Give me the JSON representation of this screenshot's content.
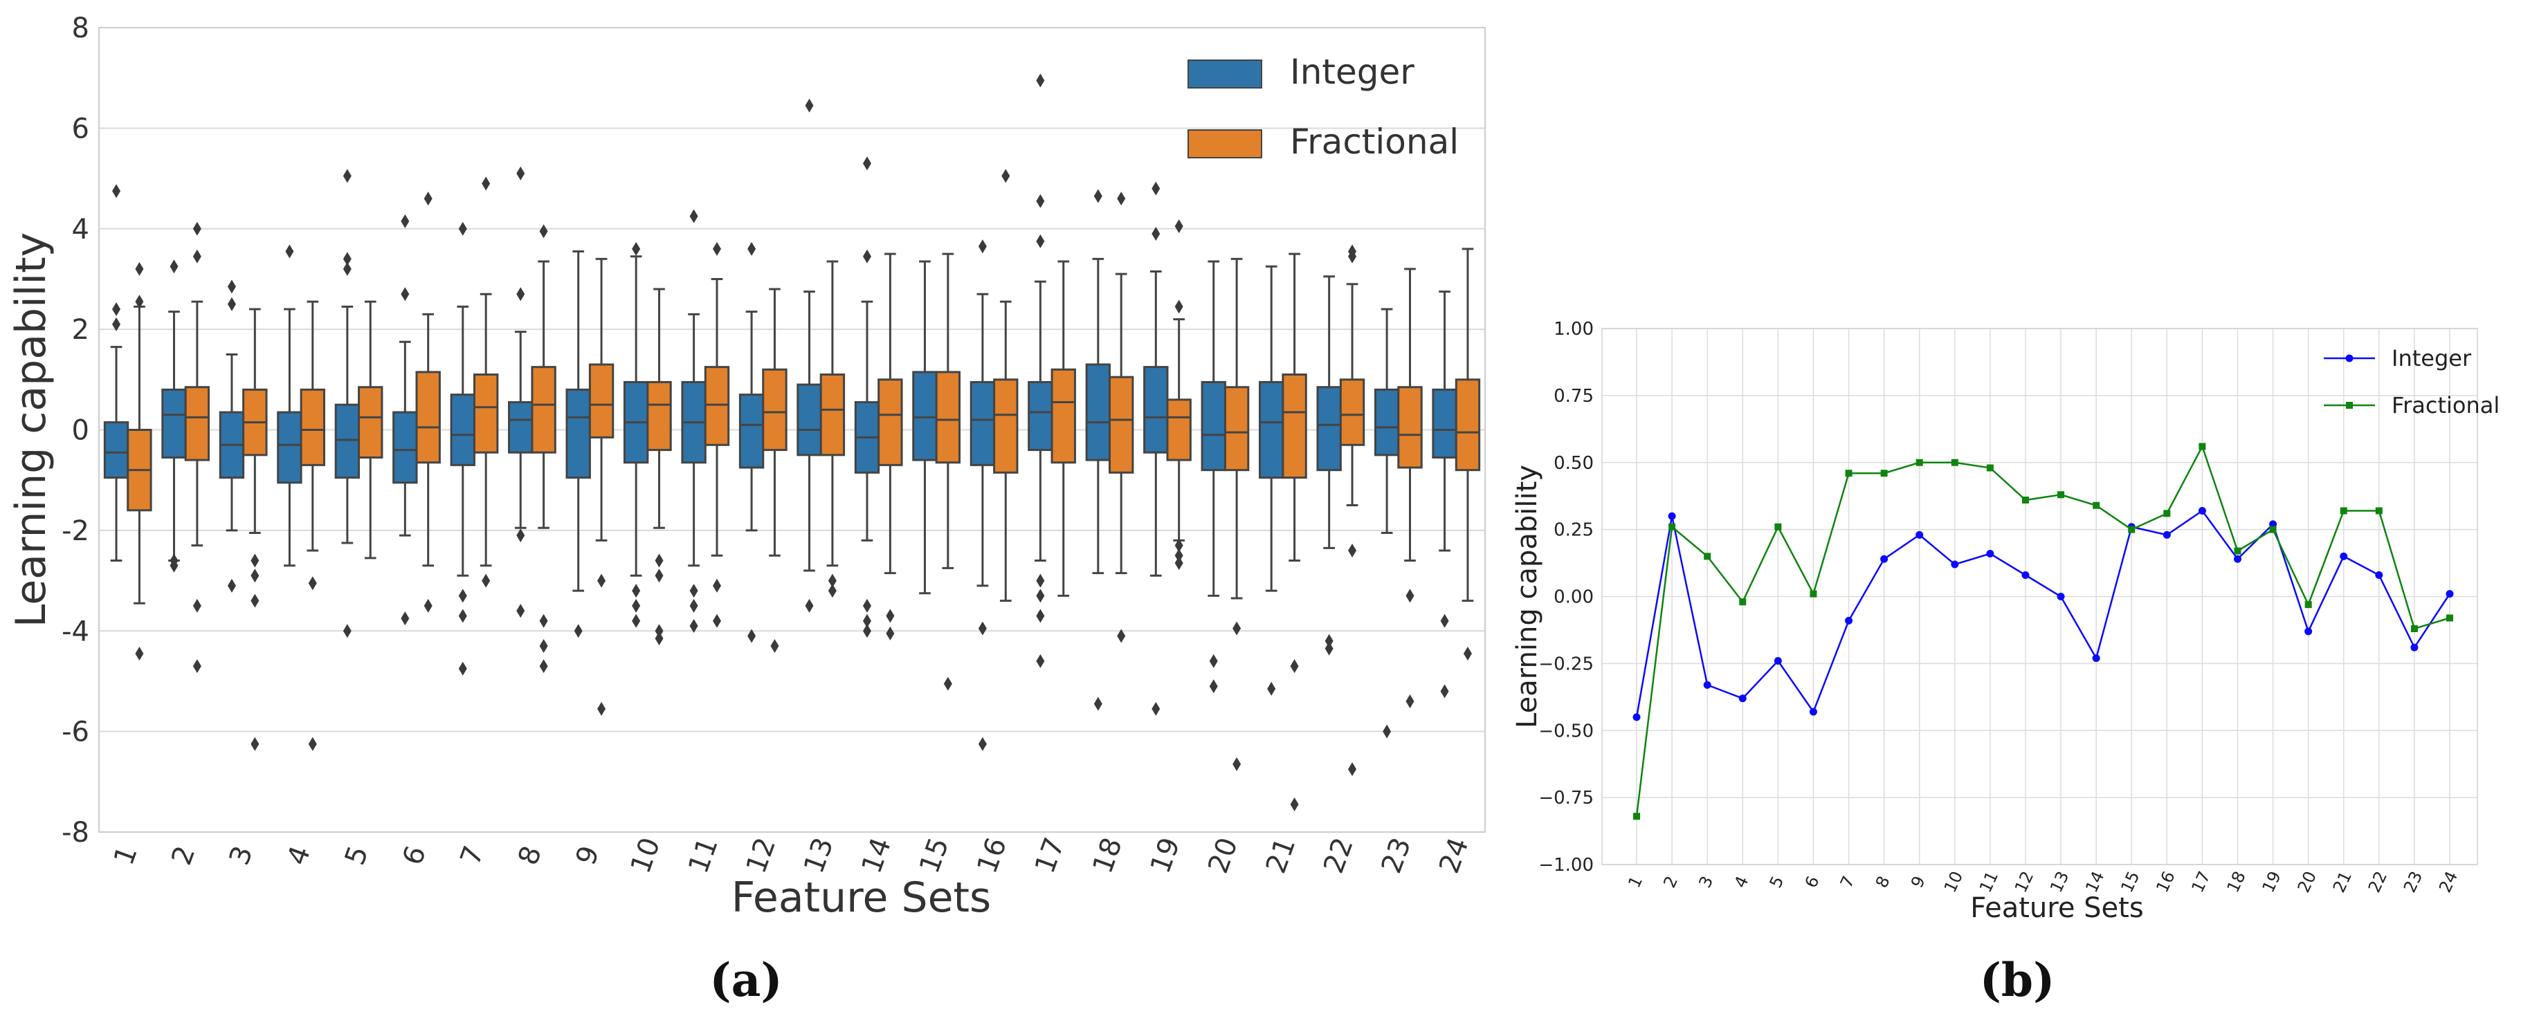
{
  "chart_data": [
    {
      "panel": "(a)",
      "type": "box",
      "xlabel": "Feature Sets",
      "ylabel": "Learning capability",
      "ylim": [
        -8,
        8
      ],
      "yticks": [
        -8,
        -6,
        -4,
        -2,
        0,
        2,
        4,
        6,
        8
      ],
      "categories": [
        "1",
        "2",
        "3",
        "4",
        "5",
        "6",
        "7",
        "8",
        "9",
        "10",
        "11",
        "12",
        "13",
        "14",
        "15",
        "16",
        "17",
        "18",
        "19",
        "20",
        "21",
        "22",
        "23",
        "24"
      ],
      "legend_position": "top-right",
      "grid": true,
      "series": [
        {
          "name": "Integer",
          "color": "#2f74a8",
          "boxes": [
            {
              "q1": -0.95,
              "median": -0.45,
              "q3": 0.15,
              "whislo": -2.6,
              "whishi": 1.65,
              "fliers": [
                2.1,
                2.4,
                4.75
              ]
            },
            {
              "q1": -0.55,
              "median": 0.3,
              "q3": 0.8,
              "whislo": -2.6,
              "whishi": 2.35,
              "fliers": [
                -2.7,
                -2.6,
                3.25
              ]
            },
            {
              "q1": -0.95,
              "median": -0.3,
              "q3": 0.35,
              "whislo": -2.0,
              "whishi": 1.5,
              "fliers": [
                -3.1,
                2.5,
                2.85
              ]
            },
            {
              "q1": -1.05,
              "median": -0.3,
              "q3": 0.35,
              "whislo": -2.7,
              "whishi": 2.4,
              "fliers": [
                3.55
              ]
            },
            {
              "q1": -0.95,
              "median": -0.2,
              "q3": 0.5,
              "whislo": -2.25,
              "whishi": 2.45,
              "fliers": [
                -4.0,
                3.2,
                3.4,
                5.05
              ]
            },
            {
              "q1": -1.05,
              "median": -0.4,
              "q3": 0.35,
              "whislo": -2.1,
              "whishi": 1.75,
              "fliers": [
                -3.75,
                2.7,
                4.15
              ]
            },
            {
              "q1": -0.7,
              "median": -0.1,
              "q3": 0.7,
              "whislo": -2.9,
              "whishi": 2.45,
              "fliers": [
                -3.3,
                -3.7,
                -4.75,
                4.0
              ]
            },
            {
              "q1": -0.45,
              "median": 0.2,
              "q3": 0.55,
              "whislo": -1.95,
              "whishi": 1.95,
              "fliers": [
                -2.1,
                -3.6,
                2.7,
                5.1
              ]
            },
            {
              "q1": -0.95,
              "median": 0.25,
              "q3": 0.8,
              "whislo": -3.2,
              "whishi": 3.55,
              "fliers": [
                -4.0
              ]
            },
            {
              "q1": -0.65,
              "median": 0.15,
              "q3": 0.95,
              "whislo": -2.9,
              "whishi": 3.45,
              "fliers": [
                -3.2,
                -3.5,
                -3.8,
                3.6
              ]
            },
            {
              "q1": -0.65,
              "median": 0.15,
              "q3": 0.95,
              "whislo": -2.7,
              "whishi": 2.3,
              "fliers": [
                -3.2,
                -3.5,
                -3.9,
                4.25
              ]
            },
            {
              "q1": -0.75,
              "median": 0.1,
              "q3": 0.7,
              "whislo": -2.0,
              "whishi": 2.35,
              "fliers": [
                -4.1,
                3.6
              ]
            },
            {
              "q1": -0.5,
              "median": 0.0,
              "q3": 0.9,
              "whislo": -2.8,
              "whishi": 2.75,
              "fliers": [
                -3.5,
                6.45
              ]
            },
            {
              "q1": -0.85,
              "median": -0.15,
              "q3": 0.55,
              "whislo": -2.2,
              "whishi": 2.55,
              "fliers": [
                -3.5,
                -3.8,
                -4.0,
                3.45,
                5.3
              ]
            },
            {
              "q1": -0.6,
              "median": 0.25,
              "q3": 1.15,
              "whislo": -3.25,
              "whishi": 3.35,
              "fliers": []
            },
            {
              "q1": -0.7,
              "median": 0.2,
              "q3": 0.95,
              "whislo": -3.1,
              "whishi": 2.7,
              "fliers": [
                -3.95,
                -6.25,
                3.65
              ]
            },
            {
              "q1": -0.4,
              "median": 0.35,
              "q3": 0.95,
              "whislo": -2.6,
              "whishi": 2.95,
              "fliers": [
                -3.0,
                -3.3,
                -3.7,
                -4.6,
                3.75,
                4.55,
                6.95
              ]
            },
            {
              "q1": -0.6,
              "median": 0.15,
              "q3": 1.3,
              "whislo": -2.85,
              "whishi": 3.4,
              "fliers": [
                -5.45,
                4.65
              ]
            },
            {
              "q1": -0.45,
              "median": 0.25,
              "q3": 1.25,
              "whislo": -2.9,
              "whishi": 3.15,
              "fliers": [
                -5.55,
                3.9,
                4.8
              ]
            },
            {
              "q1": -0.8,
              "median": -0.1,
              "q3": 0.95,
              "whislo": -3.3,
              "whishi": 3.35,
              "fliers": [
                -4.6,
                -5.1
              ]
            },
            {
              "q1": -0.95,
              "median": 0.15,
              "q3": 0.95,
              "whislo": -3.2,
              "whishi": 3.25,
              "fliers": [
                -5.15
              ]
            },
            {
              "q1": -0.8,
              "median": 0.1,
              "q3": 0.85,
              "whislo": -2.35,
              "whishi": 3.05,
              "fliers": [
                -4.2,
                -4.35
              ]
            },
            {
              "q1": -0.5,
              "median": 0.05,
              "q3": 0.8,
              "whislo": -2.05,
              "whishi": 2.4,
              "fliers": [
                -6.0
              ]
            },
            {
              "q1": -0.55,
              "median": 0.0,
              "q3": 0.8,
              "whislo": -2.4,
              "whishi": 2.75,
              "fliers": [
                -3.8,
                -5.2
              ]
            }
          ]
        },
        {
          "name": "Fractional",
          "color": "#e1812c",
          "boxes": [
            {
              "q1": -1.6,
              "median": -0.8,
              "q3": 0.0,
              "whislo": -3.45,
              "whishi": 2.45,
              "fliers": [
                -4.45,
                2.55,
                3.2
              ]
            },
            {
              "q1": -0.6,
              "median": 0.25,
              "q3": 0.85,
              "whislo": -2.3,
              "whishi": 2.55,
              "fliers": [
                -3.5,
                -4.7,
                3.45,
                4.0
              ]
            },
            {
              "q1": -0.5,
              "median": 0.15,
              "q3": 0.8,
              "whislo": -2.05,
              "whishi": 2.4,
              "fliers": [
                -2.6,
                -2.9,
                -3.4,
                -6.25
              ]
            },
            {
              "q1": -0.7,
              "median": 0.0,
              "q3": 0.8,
              "whislo": -2.4,
              "whishi": 2.55,
              "fliers": [
                -3.05,
                -6.25
              ]
            },
            {
              "q1": -0.55,
              "median": 0.25,
              "q3": 0.85,
              "whislo": -2.55,
              "whishi": 2.55,
              "fliers": []
            },
            {
              "q1": -0.65,
              "median": 0.05,
              "q3": 1.15,
              "whislo": -2.7,
              "whishi": 2.3,
              "fliers": [
                -3.5,
                4.6
              ]
            },
            {
              "q1": -0.45,
              "median": 0.45,
              "q3": 1.1,
              "whislo": -2.7,
              "whishi": 2.7,
              "fliers": [
                -3.0,
                4.9
              ]
            },
            {
              "q1": -0.45,
              "median": 0.5,
              "q3": 1.25,
              "whislo": -1.95,
              "whishi": 3.35,
              "fliers": [
                -3.8,
                -4.3,
                -4.7,
                3.95
              ]
            },
            {
              "q1": -0.15,
              "median": 0.5,
              "q3": 1.3,
              "whislo": -2.2,
              "whishi": 3.4,
              "fliers": [
                -3.0,
                -5.55
              ]
            },
            {
              "q1": -0.4,
              "median": 0.5,
              "q3": 0.95,
              "whislo": -1.95,
              "whishi": 2.8,
              "fliers": [
                -2.6,
                -2.9,
                -4.0,
                -4.15
              ]
            },
            {
              "q1": -0.3,
              "median": 0.5,
              "q3": 1.25,
              "whislo": -2.5,
              "whishi": 3.0,
              "fliers": [
                -3.1,
                -3.8,
                3.6
              ]
            },
            {
              "q1": -0.4,
              "median": 0.35,
              "q3": 1.2,
              "whislo": -2.5,
              "whishi": 2.8,
              "fliers": [
                -4.3
              ]
            },
            {
              "q1": -0.5,
              "median": 0.4,
              "q3": 1.1,
              "whislo": -2.7,
              "whishi": 3.35,
              "fliers": [
                -3.0,
                -3.2
              ]
            },
            {
              "q1": -0.7,
              "median": 0.3,
              "q3": 1.0,
              "whislo": -2.85,
              "whishi": 3.5,
              "fliers": [
                -3.7,
                -4.05
              ]
            },
            {
              "q1": -0.65,
              "median": 0.2,
              "q3": 1.15,
              "whislo": -2.75,
              "whishi": 3.5,
              "fliers": [
                -5.05
              ]
            },
            {
              "q1": -0.85,
              "median": 0.3,
              "q3": 1.0,
              "whislo": -3.4,
              "whishi": 2.55,
              "fliers": [
                5.05
              ]
            },
            {
              "q1": -0.65,
              "median": 0.55,
              "q3": 1.2,
              "whislo": -3.3,
              "whishi": 3.35,
              "fliers": []
            },
            {
              "q1": -0.85,
              "median": 0.2,
              "q3": 1.05,
              "whislo": -2.85,
              "whishi": 3.1,
              "fliers": [
                -4.1,
                4.6
              ]
            },
            {
              "q1": -0.6,
              "median": 0.25,
              "q3": 0.6,
              "whislo": -2.2,
              "whishi": 2.2,
              "fliers": [
                -2.3,
                -2.5,
                -2.65,
                2.45,
                4.05
              ]
            },
            {
              "q1": -0.8,
              "median": -0.05,
              "q3": 0.85,
              "whislo": -3.35,
              "whishi": 3.4,
              "fliers": [
                -3.95,
                -6.65
              ]
            },
            {
              "q1": -0.95,
              "median": 0.35,
              "q3": 1.1,
              "whislo": -2.6,
              "whishi": 3.5,
              "fliers": [
                -4.7,
                -7.45
              ]
            },
            {
              "q1": -0.3,
              "median": 0.3,
              "q3": 1.0,
              "whislo": -1.5,
              "whishi": 2.9,
              "fliers": [
                -2.4,
                -6.75,
                3.45,
                3.55
              ]
            },
            {
              "q1": -0.75,
              "median": -0.1,
              "q3": 0.85,
              "whislo": -2.6,
              "whishi": 3.2,
              "fliers": [
                -3.3,
                -5.4
              ]
            },
            {
              "q1": -0.8,
              "median": -0.05,
              "q3": 1.0,
              "whislo": -3.4,
              "whishi": 3.6,
              "fliers": [
                -4.45
              ]
            }
          ]
        }
      ]
    },
    {
      "panel": "(b)",
      "type": "line",
      "xlabel": "Feature Sets",
      "ylabel": "Learning capability",
      "ylim": [
        -1.0,
        1.0
      ],
      "yticks": [
        -1.0,
        -0.75,
        -0.5,
        -0.25,
        0.0,
        0.25,
        0.5,
        0.75,
        1.0
      ],
      "ytick_labels": [
        "−1.00",
        "−0.75",
        "−0.50",
        "−0.25",
        "0.00",
        "0.25",
        "0.50",
        "0.75",
        "1.00"
      ],
      "x": [
        "1",
        "2",
        "3",
        "4",
        "5",
        "6",
        "7",
        "8",
        "9",
        "10",
        "11",
        "12",
        "13",
        "14",
        "15",
        "16",
        "17",
        "18",
        "19",
        "20",
        "21",
        "22",
        "23",
        "24"
      ],
      "legend_position": "top-right",
      "grid": true,
      "series": [
        {
          "name": "Integer",
          "color": "#0a0aff",
          "marker": "circle",
          "values": [
            -0.45,
            0.3,
            -0.33,
            -0.38,
            -0.24,
            -0.43,
            -0.09,
            0.14,
            0.23,
            0.12,
            0.16,
            0.08,
            0.0,
            -0.23,
            0.26,
            0.23,
            0.32,
            0.14,
            0.27,
            -0.13,
            0.15,
            0.08,
            -0.19,
            0.01
          ]
        },
        {
          "name": "Fractional",
          "color": "#0f840f",
          "marker": "square",
          "values": [
            -0.82,
            0.26,
            0.15,
            -0.02,
            0.26,
            0.01,
            0.46,
            0.46,
            0.5,
            0.5,
            0.48,
            0.36,
            0.38,
            0.34,
            0.25,
            0.31,
            0.56,
            0.17,
            0.25,
            -0.03,
            0.32,
            0.32,
            -0.12,
            -0.08
          ]
        }
      ]
    }
  ],
  "captions": {
    "a": "(a)",
    "b": "(b)"
  }
}
